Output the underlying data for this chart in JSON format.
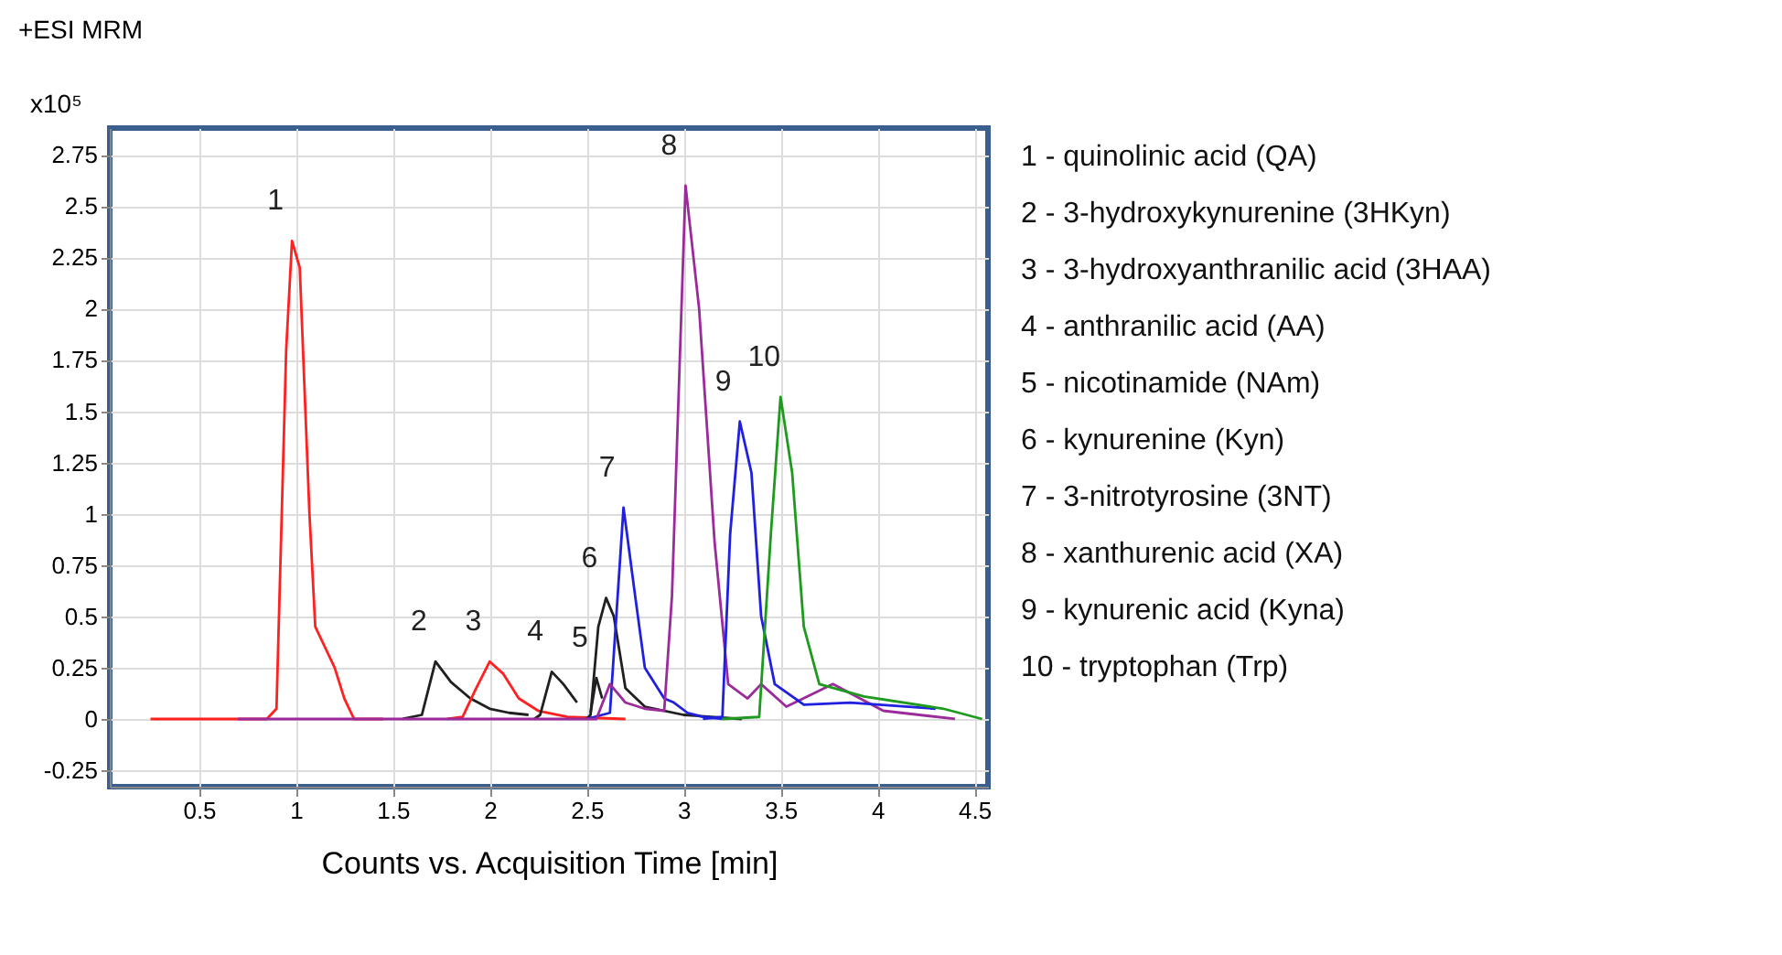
{
  "chart_data": {
    "type": "line",
    "title": "+ESI MRM",
    "ylabel": "x10⁵",
    "xlabel": "Counts vs. Acquisition Time [min]",
    "xlim": [
      0.04,
      4.57
    ],
    "ylim": [
      -0.33,
      2.88
    ],
    "xticks": [
      0.5,
      1,
      1.5,
      2,
      2.5,
      3,
      3.5,
      4,
      4.5
    ],
    "yticks": [
      -0.25,
      0,
      0.25,
      0.5,
      0.75,
      1,
      1.25,
      1.5,
      1.75,
      2,
      2.25,
      2.5,
      2.75
    ],
    "grid": true,
    "marker": "none",
    "line_style": "solid",
    "series": [
      {
        "color": "#ff2020",
        "x": [
          0.25,
          0.85,
          0.9,
          0.95,
          0.98,
          1.02,
          1.07,
          1.1,
          1.15,
          1.2,
          1.25,
          1.3,
          1.45
        ],
        "values": [
          0,
          0,
          0.05,
          1.8,
          2.33,
          2.2,
          1.0,
          0.45,
          0.35,
          0.25,
          0.1,
          0,
          0
        ]
      },
      {
        "color": "#202020",
        "x": [
          1.55,
          1.65,
          1.72,
          1.8,
          1.9,
          2.0,
          2.1,
          2.2
        ],
        "values": [
          0,
          0.02,
          0.28,
          0.18,
          0.1,
          0.05,
          0.03,
          0.02
        ]
      },
      {
        "color": "#ff2020",
        "x": [
          1.78,
          1.86,
          1.93,
          2.0,
          2.07,
          2.15,
          2.25,
          2.4,
          2.7
        ],
        "values": [
          0,
          0.01,
          0.15,
          0.28,
          0.22,
          0.1,
          0.04,
          0.01,
          0
        ]
      },
      {
        "color": "#202020",
        "x": [
          2.23,
          2.26,
          2.32,
          2.38,
          2.45
        ],
        "values": [
          0,
          0.02,
          0.23,
          0.17,
          0.08
        ]
      },
      {
        "color": "#202020",
        "x": [
          2.52,
          2.55,
          2.58
        ],
        "values": [
          0.03,
          0.2,
          0.1
        ]
      },
      {
        "color": "#202020",
        "x": [
          2.5,
          2.52,
          2.56,
          2.6,
          2.64,
          2.7,
          2.8,
          3.0,
          3.3
        ],
        "values": [
          0,
          0.02,
          0.45,
          0.59,
          0.5,
          0.15,
          0.06,
          0.02,
          0
        ]
      },
      {
        "color": "#2020e0",
        "x": [
          2.5,
          2.62,
          2.69,
          2.75,
          2.8,
          2.9,
          2.95,
          3.02,
          3.1,
          3.2
        ],
        "values": [
          0,
          0.03,
          1.03,
          0.6,
          0.25,
          0.1,
          0.08,
          0.03,
          0.01,
          0
        ]
      },
      {
        "color": "#9b2a9b",
        "x": [
          0.7,
          2.55,
          2.62,
          2.7,
          2.8,
          2.9,
          2.94,
          3.01,
          3.08,
          3.16,
          3.23,
          3.33,
          3.4,
          3.53,
          3.77,
          4.03,
          4.4
        ],
        "values": [
          0,
          0,
          0.17,
          0.08,
          0.05,
          0.04,
          0.6,
          2.6,
          2.0,
          0.86,
          0.17,
          0.1,
          0.17,
          0.06,
          0.17,
          0.04,
          0
        ]
      },
      {
        "color": "#2020e0",
        "x": [
          3.1,
          3.2,
          3.24,
          3.29,
          3.35,
          3.4,
          3.47,
          3.62,
          3.86,
          4.3
        ],
        "values": [
          0,
          0.01,
          0.9,
          1.45,
          1.2,
          0.5,
          0.17,
          0.07,
          0.08,
          0.05
        ]
      },
      {
        "color": "#1e9a1e",
        "x": [
          3.2,
          3.39,
          3.45,
          3.5,
          3.56,
          3.62,
          3.7,
          3.93,
          4.34,
          4.54
        ],
        "values": [
          0,
          0.01,
          0.9,
          1.57,
          1.2,
          0.45,
          0.17,
          0.11,
          0.05,
          0
        ]
      }
    ],
    "annotations": [
      "1",
      "2",
      "3",
      "4",
      "5",
      "6",
      "7",
      "8",
      "9",
      "10",
      "1 - quinolinic acid (QA)",
      "2 - 3-hydroxykynurenine (3HKyn)",
      "3 - 3-hydroxyanthranilic acid (3HAA)",
      "4 - anthranilic acid (AA)",
      "5 - nicotinamide (NAm)",
      "6 - kynurenine (Kyn)",
      "7 - 3-nitrotyrosine (3NT)",
      "8 - xanthurenic acid (XA)",
      "9 - kynurenic acid (Kyna)",
      "10 - tryptophan (Trp)"
    ]
  }
}
